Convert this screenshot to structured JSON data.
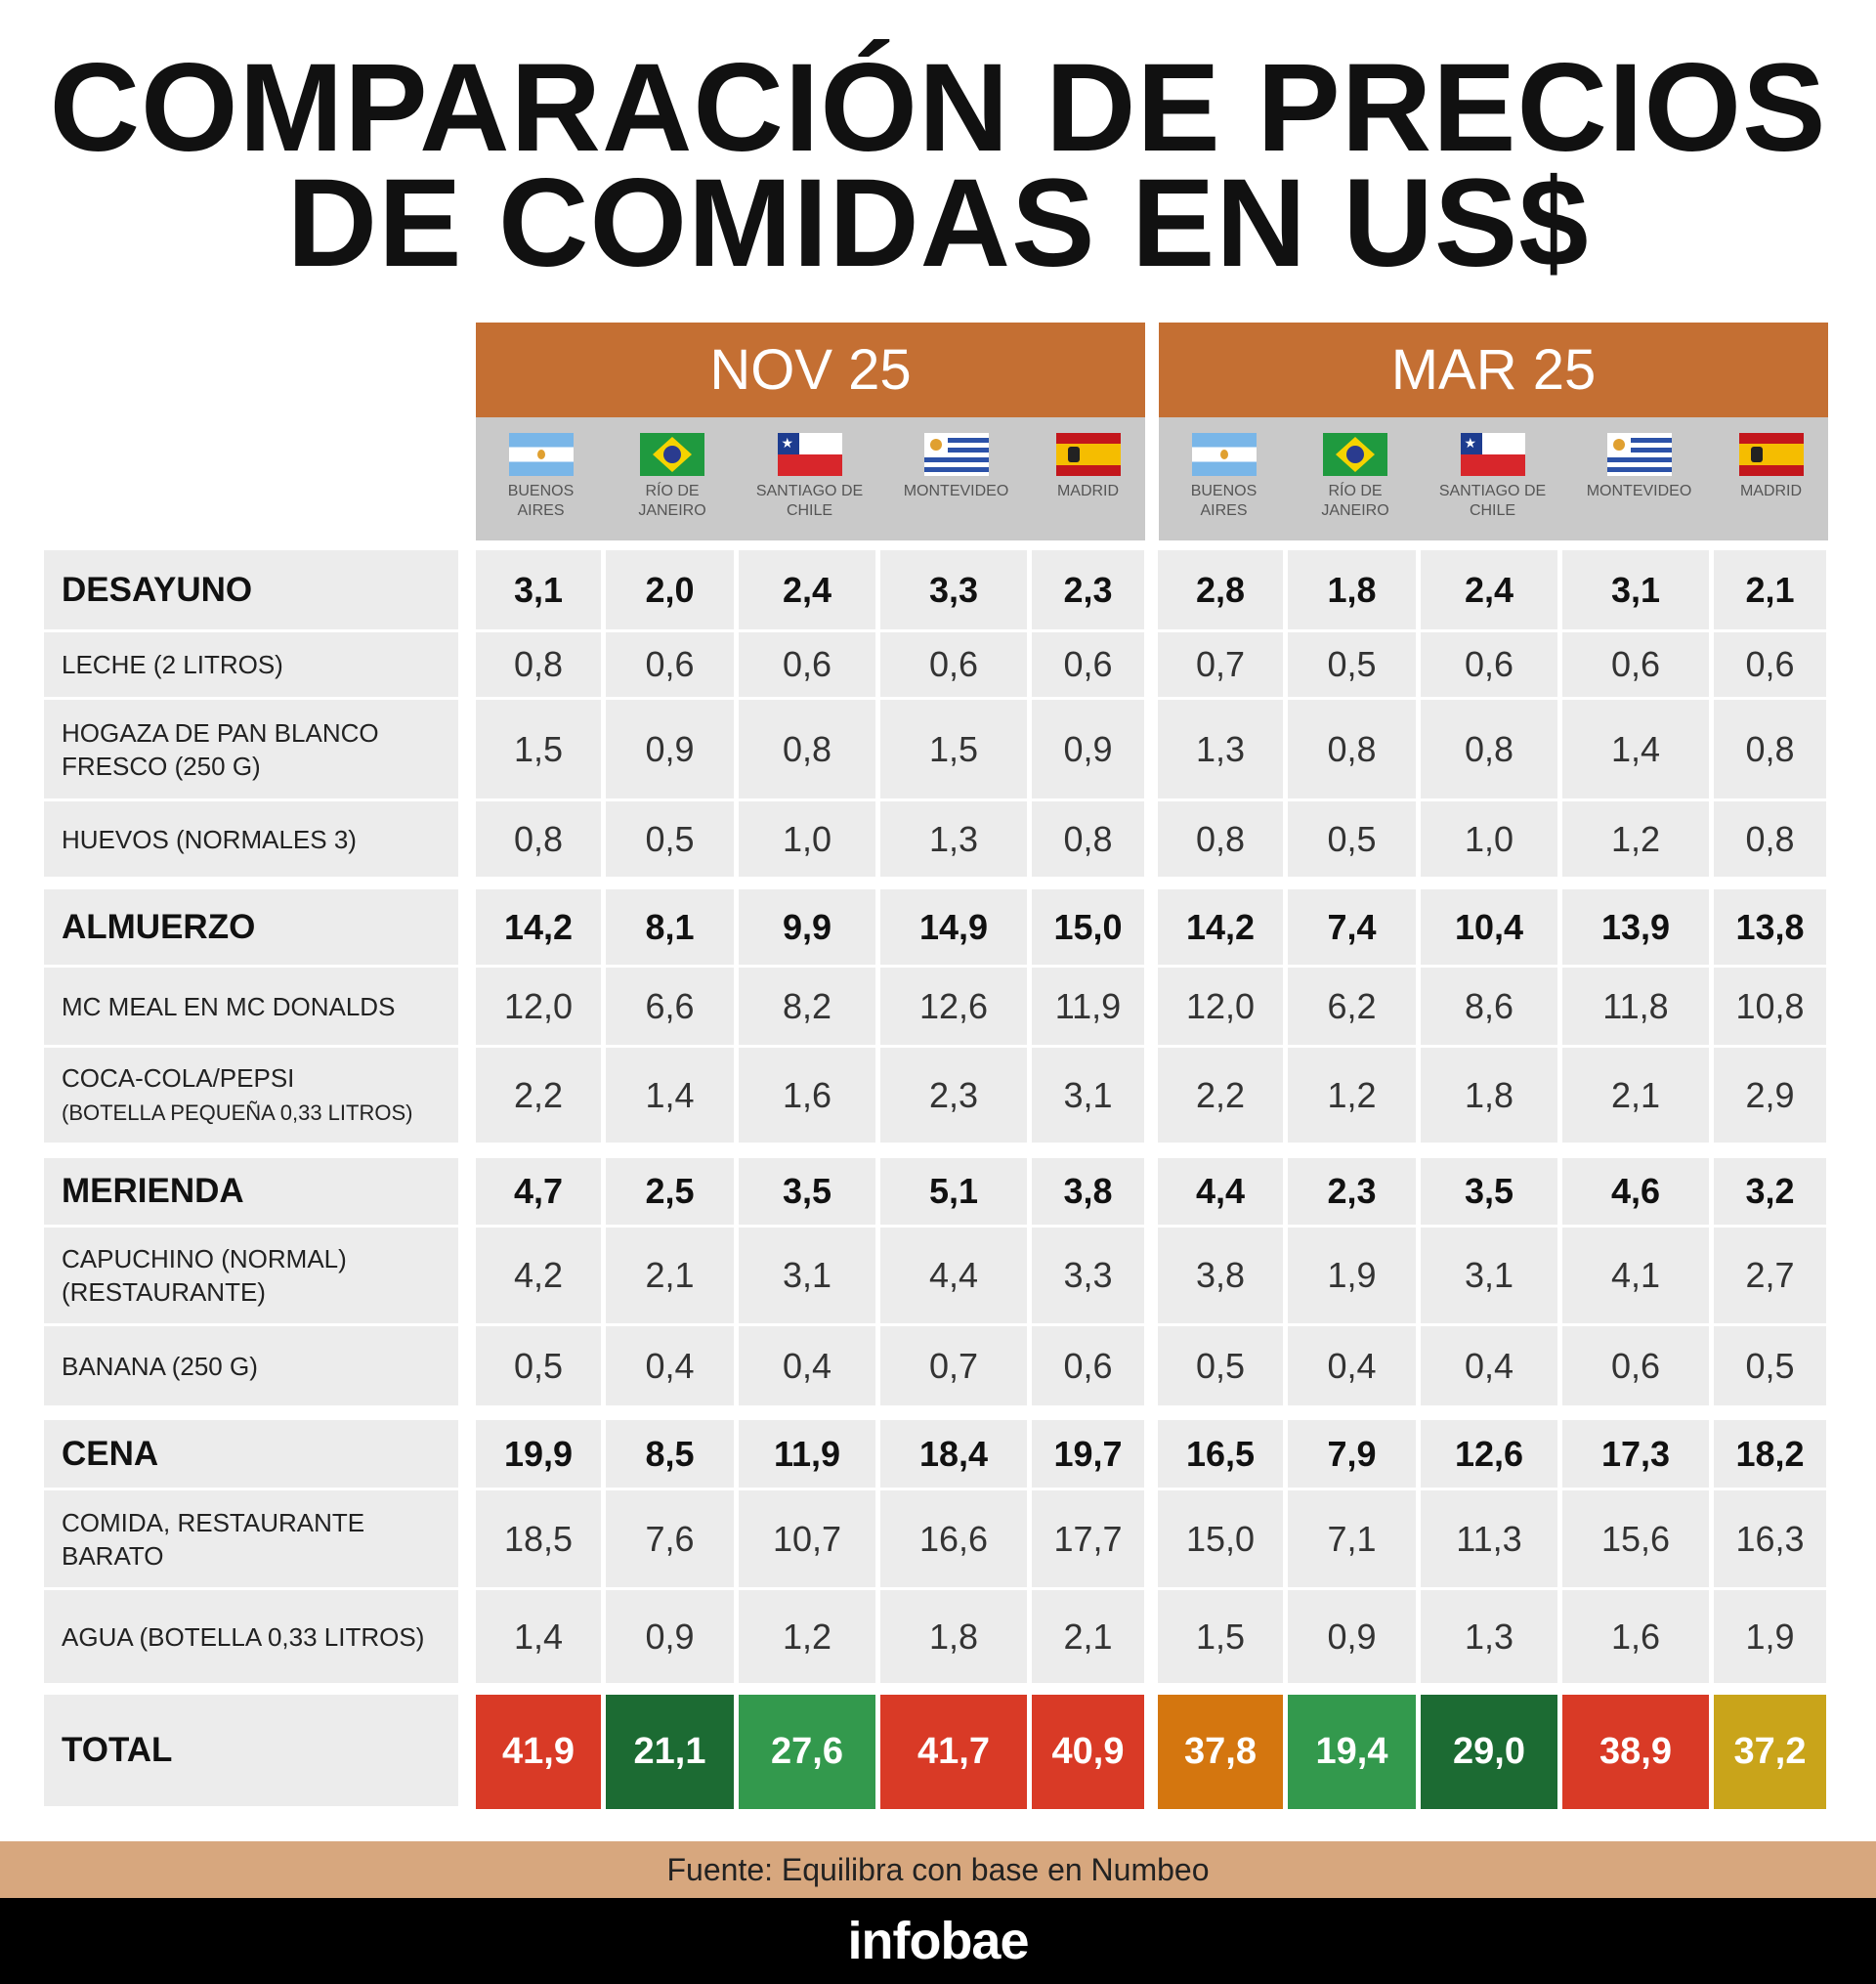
{
  "title": [
    "COMPARACIÓN DE PRECIOS",
    "DE COMIDAS EN US$"
  ],
  "periods": [
    "NOV 25",
    "MAR 25"
  ],
  "cities": [
    {
      "name": "BUENOS AIRES",
      "flag": "argentina"
    },
    {
      "name": "RÍO DE JANEIRO",
      "flag": "brazil"
    },
    {
      "name": "SANTIAGO DE CHILE",
      "flag": "chile"
    },
    {
      "name": "MONTEVIDEO",
      "flag": "uruguay"
    },
    {
      "name": "MADRID",
      "flag": "spain"
    }
  ],
  "groups": [
    {
      "label": "DESAYUNO",
      "values": [
        "3,1",
        "2,0",
        "2,4",
        "3,3",
        "2,3",
        "2,8",
        "1,8",
        "2,4",
        "3,1",
        "2,1"
      ],
      "items": [
        {
          "label": "LECHE (2 LITROS)",
          "values": [
            "0,8",
            "0,6",
            "0,6",
            "0,6",
            "0,6",
            "0,7",
            "0,5",
            "0,6",
            "0,6",
            "0,6"
          ]
        },
        {
          "label": "HOGAZA DE PAN BLANCO FRESCO (250 G)",
          "values": [
            "1,5",
            "0,9",
            "0,8",
            "1,5",
            "0,9",
            "1,3",
            "0,8",
            "0,8",
            "1,4",
            "0,8"
          ]
        },
        {
          "label": "HUEVOS (NORMALES 3)",
          "values": [
            "0,8",
            "0,5",
            "1,0",
            "1,3",
            "0,8",
            "0,8",
            "0,5",
            "1,0",
            "1,2",
            "0,8"
          ]
        }
      ]
    },
    {
      "label": "ALMUERZO",
      "values": [
        "14,2",
        "8,1",
        "9,9",
        "14,9",
        "15,0",
        "14,2",
        "7,4",
        "10,4",
        "13,9",
        "13,8"
      ],
      "items": [
        {
          "label": "MC MEAL EN MC DONALDS",
          "values": [
            "12,0",
            "6,6",
            "8,2",
            "12,6",
            "11,9",
            "12,0",
            "6,2",
            "8,6",
            "11,8",
            "10,8"
          ]
        },
        {
          "label": "COCA-COLA/PEPSI",
          "sublabel": "(BOTELLA PEQUEÑA 0,33 LITROS)",
          "values": [
            "2,2",
            "1,4",
            "1,6",
            "2,3",
            "3,1",
            "2,2",
            "1,2",
            "1,8",
            "2,1",
            "2,9"
          ]
        }
      ]
    },
    {
      "label": "MERIENDA",
      "values": [
        "4,7",
        "2,5",
        "3,5",
        "5,1",
        "3,8",
        "4,4",
        "2,3",
        "3,5",
        "4,6",
        "3,2"
      ],
      "items": [
        {
          "label": "CAPUCHINO (NORMAL) (RESTAURANTE)",
          "values": [
            "4,2",
            "2,1",
            "3,1",
            "4,4",
            "3,3",
            "3,8",
            "1,9",
            "3,1",
            "4,1",
            "2,7"
          ]
        },
        {
          "label": "BANANA (250 G)",
          "values": [
            "0,5",
            "0,4",
            "0,4",
            "0,7",
            "0,6",
            "0,5",
            "0,4",
            "0,4",
            "0,6",
            "0,5"
          ]
        }
      ]
    },
    {
      "label": "CENA",
      "values": [
        "19,9",
        "8,5",
        "11,9",
        "18,4",
        "19,7",
        "16,5",
        "7,9",
        "12,6",
        "17,3",
        "18,2"
      ],
      "items": [
        {
          "label": "COMIDA, RESTAURANTE BARATO",
          "values": [
            "18,5",
            "7,6",
            "10,7",
            "16,6",
            "17,7",
            "15,0",
            "7,1",
            "11,3",
            "15,6",
            "16,3"
          ]
        },
        {
          "label": "AGUA (BOTELLA 0,33 LITROS)",
          "values": [
            "1,4",
            "0,9",
            "1,2",
            "1,8",
            "2,1",
            "1,5",
            "0,9",
            "1,3",
            "1,6",
            "1,9"
          ]
        }
      ]
    }
  ],
  "total": {
    "label": "TOTAL",
    "values": [
      "41,9",
      "21,1",
      "27,6",
      "41,7",
      "40,9",
      "37,8",
      "19,4",
      "29,0",
      "38,9",
      "37,2"
    ],
    "colors": [
      "#d93a26",
      "#1c6b33",
      "#33994d",
      "#d93a26",
      "#d93a26",
      "#d4760f",
      "#33994d",
      "#1c6b33",
      "#d93a26",
      "#c9a41a"
    ]
  },
  "source": "Fuente: Equilibra con base en Numbeo",
  "brand": "infobae"
}
